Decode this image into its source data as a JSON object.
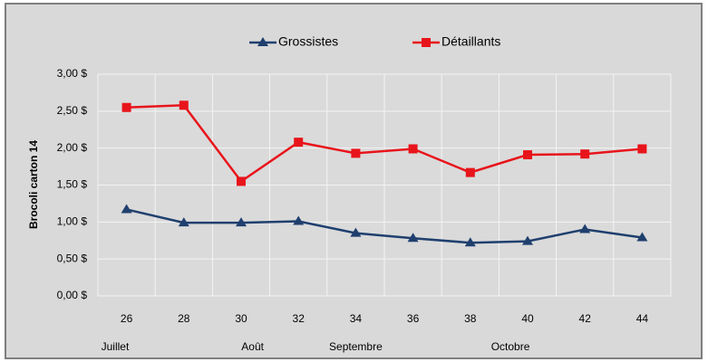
{
  "chart_data": {
    "type": "line",
    "y_label": "Brocoli carton 14",
    "categories": [
      "26",
      "28",
      "30",
      "32",
      "34",
      "36",
      "38",
      "40",
      "42",
      "44"
    ],
    "month_labels": [
      "Juillet",
      "Août",
      "Septembre",
      "Octobre"
    ],
    "series": [
      {
        "name": "Grossistes",
        "color": "#1f3f6e",
        "marker": "triangle",
        "values": [
          1.17,
          0.99,
          0.99,
          1.01,
          0.85,
          0.78,
          0.72,
          0.74,
          0.9,
          0.79
        ]
      },
      {
        "name": "Détaillants",
        "color": "#e8141b",
        "marker": "square",
        "values": [
          2.55,
          2.58,
          1.55,
          2.08,
          1.93,
          1.99,
          1.67,
          1.91,
          1.92,
          1.99
        ]
      }
    ],
    "ylim": [
      0,
      3
    ],
    "yticks": [
      {
        "value": 0,
        "label": "0,00 $"
      },
      {
        "value": 0.5,
        "label": "0,50 $"
      },
      {
        "value": 1,
        "label": "1,00 $"
      },
      {
        "value": 1.5,
        "label": "1,50 $"
      },
      {
        "value": 2,
        "label": "2,00 $"
      },
      {
        "value": 2.5,
        "label": "2,50 $"
      },
      {
        "value": 3,
        "label": "3,00 $"
      }
    ],
    "grid": true,
    "legend": "top"
  }
}
